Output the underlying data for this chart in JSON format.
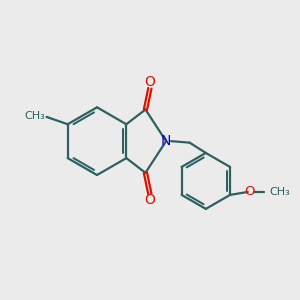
{
  "bg_color": "#ebebeb",
  "bond_color": "#2d6060",
  "o_color": "#dd1100",
  "n_color": "#1100cc",
  "line_width": 1.6,
  "dbo": 0.055,
  "figsize": [
    3.0,
    3.0
  ],
  "dpi": 100,
  "xlim": [
    0,
    10
  ],
  "ylim": [
    0,
    10
  ]
}
